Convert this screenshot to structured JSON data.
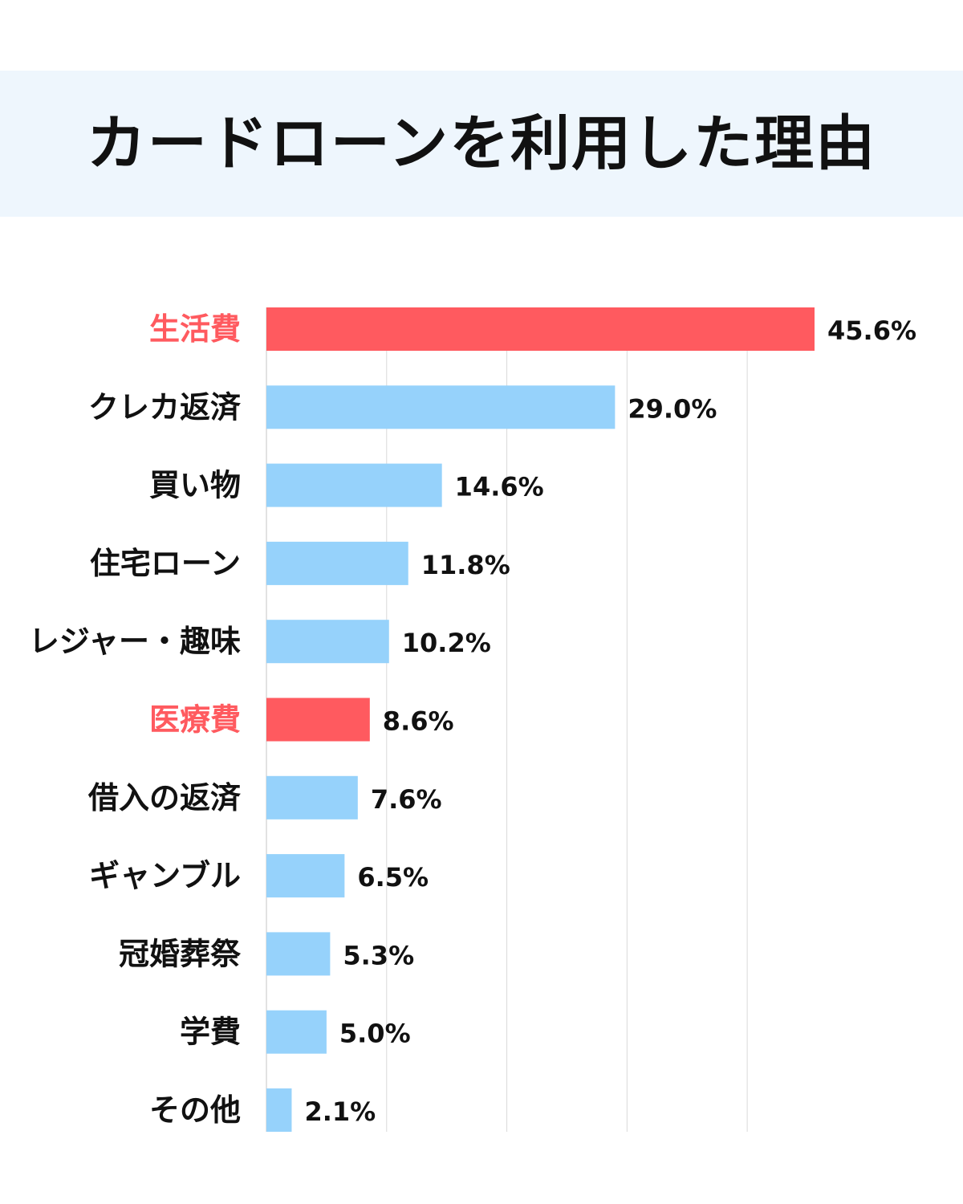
{
  "title": "カードローンを利用した理由",
  "colors": {
    "title_band": "#eef6fd",
    "highlight": "#ff5a5f",
    "normal": "#96d2fb",
    "label_default": "#111111",
    "grid": "#d9d9d9"
  },
  "chart_data": {
    "type": "bar",
    "orientation": "horizontal",
    "title": "カードローンを利用した理由",
    "categories": [
      "生活費",
      "クレカ返済",
      "買い物",
      "住宅ローン",
      "レジャー・趣味",
      "医療費",
      "借入の返済",
      "ギャンブル",
      "冠婚葬祭",
      "学費",
      "その他"
    ],
    "values": [
      45.6,
      29.0,
      14.6,
      11.8,
      10.2,
      8.6,
      7.6,
      6.5,
      5.3,
      5.0,
      2.1
    ],
    "value_labels": [
      "45.6%",
      "29.0%",
      "14.6%",
      "11.8%",
      "10.2%",
      "8.6%",
      "7.6%",
      "6.5%",
      "5.3%",
      "5.0%",
      "2.1%"
    ],
    "highlighted": [
      "生活費",
      "医療費"
    ],
    "unit": "%",
    "xlim": [
      0,
      50
    ],
    "grid": true,
    "legend": "none"
  }
}
